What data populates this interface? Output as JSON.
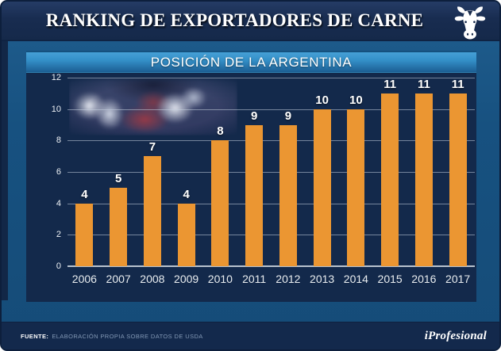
{
  "header": {
    "title": "RANKING DE EXPORTADORES DE CARNE"
  },
  "panel": {
    "title": "POSICIÓN DE LA ARGENTINA"
  },
  "chart_data": {
    "type": "bar",
    "title": "POSICIÓN DE LA ARGENTINA",
    "categories": [
      "2006",
      "2007",
      "2008",
      "2009",
      "2010",
      "2011",
      "2012",
      "2013",
      "2014",
      "2015",
      "2016",
      "2017"
    ],
    "values": [
      4,
      5,
      7,
      4,
      8,
      9,
      9,
      10,
      10,
      11,
      11,
      11
    ],
    "xlabel": "",
    "ylabel": "",
    "ylim": [
      0,
      12
    ],
    "yticks": [
      0,
      2,
      4,
      6,
      8,
      10,
      12
    ],
    "grid": true,
    "value_labels": true,
    "bar_color": "#eb9632",
    "legend_position": "none"
  },
  "footer": {
    "source_label": "FUENTE:",
    "source_text": "ELABORACIÓN PROPIA SOBRE DATOS DE USDA",
    "brand": "iProfesional"
  },
  "colors": {
    "header_navy": "#16294a",
    "panel_navy": "#13294b",
    "frame_blue": "#175180",
    "titlebar_top": "#46a0d6",
    "titlebar_bottom": "#1c5e93",
    "bar_orange": "#eb9632",
    "footer_navy": "#13294c"
  }
}
